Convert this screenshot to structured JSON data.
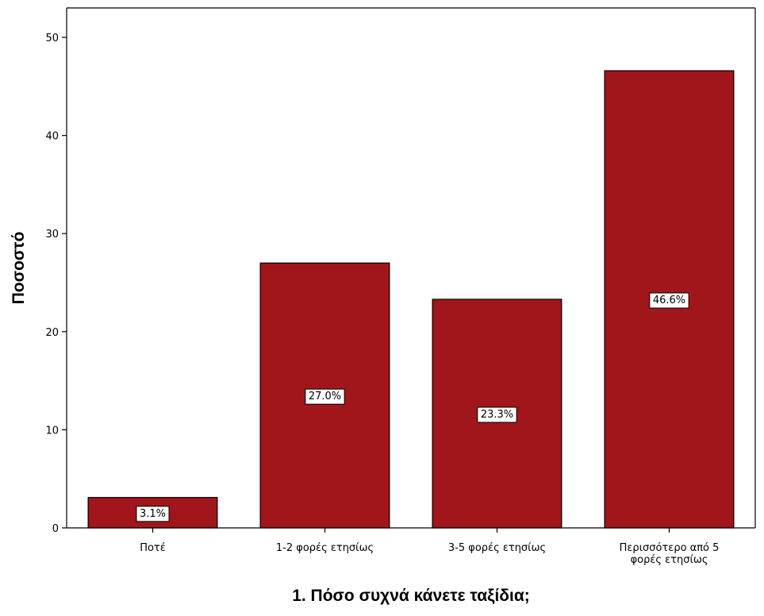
{
  "chart_data": {
    "type": "bar",
    "categories": [
      "Ποτέ",
      "1-2 φορές ετησίως",
      "3-5 φορές ετησίως",
      "Περισσότερο από 5 φορές ετησίως"
    ],
    "category_label_lines": [
      [
        "Ποτέ"
      ],
      [
        "1-2 φορές ετησίως"
      ],
      [
        "3-5 φορές ετησίως"
      ],
      [
        "Περισσότερο από 5",
        "φορές ετησίως"
      ]
    ],
    "values": [
      3.1,
      27.0,
      23.3,
      46.6
    ],
    "data_labels": [
      "3.1%",
      "27.0%",
      "23.3%",
      "46.6%"
    ],
    "title": "",
    "xlabel": "1. Πόσο συχνά κάνετε ταξίδια;",
    "ylabel": "Ποσοστό",
    "ylim": [
      0,
      53
    ],
    "yticks": [
      0,
      10,
      20,
      30,
      40,
      50
    ],
    "ytick_labels": [
      "0",
      "10",
      "20",
      "30",
      "40",
      "50"
    ],
    "bar_color": "#a1161a",
    "grid": false,
    "legend": "none"
  }
}
